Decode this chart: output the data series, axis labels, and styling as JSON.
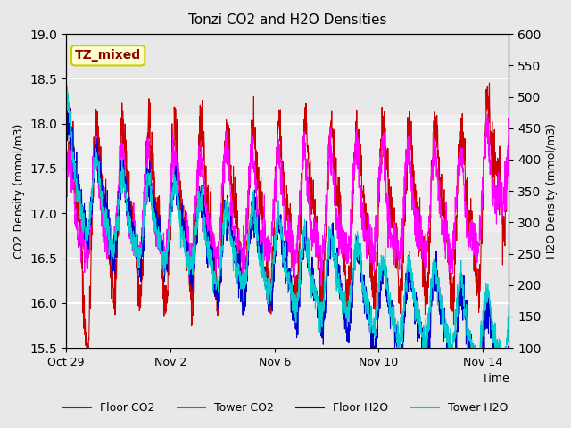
{
  "title": "Tonzi CO2 and H2O Densities",
  "xlabel": "Time",
  "ylabel_left": "CO2 Density (mmol/m3)",
  "ylabel_right": "H2O Density (mmol/m3)",
  "annotation_text": "TZ_mixed",
  "annotation_color": "#8B0000",
  "annotation_bg": "#FFFFCC",
  "annotation_border": "#CCCC00",
  "ylim_left": [
    15.5,
    19.0
  ],
  "ylim_right": [
    100,
    600
  ],
  "yticks_left": [
    15.5,
    16.0,
    16.5,
    17.0,
    17.5,
    18.0,
    18.5,
    19.0
  ],
  "yticks_right": [
    100,
    150,
    200,
    250,
    300,
    350,
    400,
    450,
    500,
    550,
    600
  ],
  "xtick_labels": [
    "Oct 29",
    "Nov 2",
    "Nov 6",
    "Nov 10",
    "Nov 14"
  ],
  "background_color": "#e8e8e8",
  "plot_bg_color": "#e8e8e8",
  "grid_color": "#ffffff",
  "colors": {
    "floor_co2": "#cc0000",
    "tower_co2": "#ff00ff",
    "floor_h2o": "#0000cc",
    "tower_h2o": "#00cccc"
  },
  "legend_labels": [
    "Floor CO2",
    "Tower CO2",
    "Floor H2O",
    "Tower H2O"
  ],
  "seed": 42,
  "n_days": 17,
  "n_points": 2000
}
